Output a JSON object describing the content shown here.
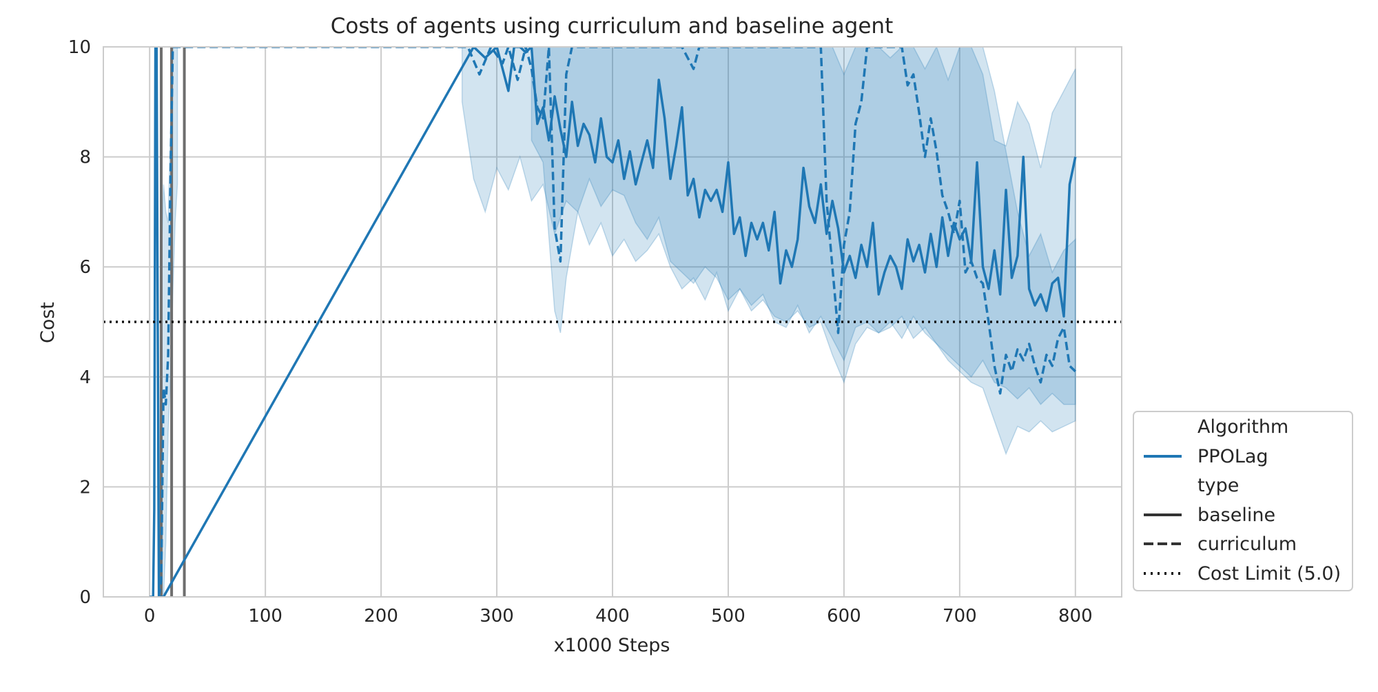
{
  "chart_data": {
    "type": "line",
    "title": "Costs of agents using curriculum and baseline agent",
    "xlabel": "x1000 Steps",
    "ylabel": "Cost",
    "xlim": [
      -40,
      840
    ],
    "ylim": [
      0,
      10
    ],
    "xticks": [
      0,
      100,
      200,
      300,
      400,
      500,
      600,
      700,
      800
    ],
    "yticks": [
      0,
      2,
      4,
      6,
      8,
      10
    ],
    "grid": true,
    "legend_placement": "lower-right-outside",
    "colors": {
      "series": "#1f77b4",
      "band": "#1f77b4",
      "grid": "#cccccc",
      "axes": "#cccccc",
      "limit": "#111111",
      "legend_style_line": "#333333",
      "vertical_markers": "#6e6e6e"
    },
    "legend": {
      "hue_title": "Algorithm",
      "hue_entries": [
        "PPOLag"
      ],
      "style_title": "type",
      "style_entries": [
        "baseline",
        "curriculum"
      ],
      "limit_entry": "Cost Limit (5.0)"
    },
    "cost_limit": 5.0,
    "vertical_markers": [
      10,
      19,
      30
    ],
    "series": [
      {
        "name": "PPOLag",
        "type": "baseline",
        "dash": "solid",
        "x": [
          0,
          3,
          4,
          5,
          6,
          8,
          12,
          280,
          290,
          300,
          310,
          315,
          320,
          325,
          330,
          335,
          340,
          345,
          350,
          355,
          360,
          365,
          370,
          375,
          380,
          385,
          390,
          395,
          400,
          405,
          410,
          415,
          420,
          425,
          430,
          435,
          440,
          445,
          450,
          455,
          460,
          465,
          470,
          475,
          480,
          485,
          490,
          495,
          500,
          505,
          510,
          515,
          520,
          525,
          530,
          535,
          540,
          545,
          550,
          555,
          560,
          565,
          570,
          575,
          580,
          585,
          590,
          595,
          600,
          605,
          610,
          615,
          620,
          625,
          630,
          635,
          640,
          645,
          650,
          655,
          660,
          665,
          670,
          675,
          680,
          685,
          690,
          695,
          700,
          705,
          710,
          715,
          720,
          725,
          730,
          735,
          740,
          745,
          750,
          755,
          760,
          765,
          770,
          775,
          780,
          785,
          790,
          795,
          800
        ],
        "y": [
          0,
          0,
          1.6,
          10,
          10,
          0,
          0,
          10,
          9.8,
          10,
          9.2,
          10,
          10,
          9.9,
          10,
          8.6,
          8.9,
          8.3,
          9.1,
          8.5,
          8.0,
          9.0,
          8.2,
          8.6,
          8.4,
          7.9,
          8.7,
          8.0,
          7.9,
          8.3,
          7.6,
          8.1,
          7.5,
          7.9,
          8.3,
          7.8,
          9.4,
          8.7,
          7.6,
          8.2,
          8.9,
          7.3,
          7.6,
          6.9,
          7.4,
          7.2,
          7.4,
          7.0,
          7.9,
          6.6,
          6.9,
          6.2,
          6.8,
          6.5,
          6.8,
          6.3,
          7.0,
          5.7,
          6.3,
          6.0,
          6.5,
          7.8,
          7.1,
          6.8,
          7.5,
          6.6,
          7.2,
          6.7,
          5.9,
          6.2,
          5.8,
          6.4,
          6.0,
          6.8,
          5.5,
          5.9,
          6.2,
          6.0,
          5.6,
          6.5,
          6.1,
          6.4,
          5.9,
          6.6,
          6.0,
          6.9,
          6.2,
          6.8,
          6.5,
          6.7,
          6.1,
          7.9,
          6.0,
          5.6,
          6.3,
          5.5,
          7.4,
          5.8,
          6.2,
          8.0,
          5.6,
          5.3,
          5.5,
          5.2,
          5.7,
          5.8,
          5.1,
          7.5,
          8.0
        ]
      },
      {
        "name": "PPOLag",
        "type": "curriculum",
        "dash": "dashed",
        "x": [
          8,
          10,
          12,
          14,
          16,
          18,
          20,
          22,
          275,
          285,
          295,
          305,
          310,
          318,
          325,
          330,
          335,
          340,
          345,
          350,
          355,
          360,
          365,
          370,
          380,
          390,
          400,
          420,
          440,
          460,
          470,
          475,
          580,
          585,
          590,
          595,
          600,
          605,
          610,
          615,
          620,
          630,
          640,
          645,
          650,
          655,
          660,
          665,
          670,
          675,
          680,
          685,
          690,
          695,
          700,
          705,
          710,
          715,
          720,
          725,
          730,
          735,
          740,
          745,
          750,
          755,
          760,
          765,
          770,
          775,
          780,
          785,
          790,
          795,
          800
        ],
        "y": [
          0,
          0.3,
          3.8,
          3.5,
          4.4,
          7.6,
          10,
          10,
          10,
          9.5,
          10,
          9.7,
          10,
          9.4,
          10,
          9.6,
          8.9,
          8.7,
          10,
          6.7,
          6.1,
          9.5,
          10,
          10,
          10,
          10,
          10,
          10,
          10,
          10,
          9.6,
          10,
          10,
          7.2,
          6.0,
          4.8,
          6.4,
          7.0,
          8.6,
          9.0,
          10,
          10,
          10,
          10,
          10,
          9.3,
          9.5,
          8.8,
          8.0,
          8.7,
          8.1,
          7.3,
          7.0,
          6.6,
          7.2,
          5.9,
          6.1,
          5.8,
          5.7,
          5.0,
          4.2,
          3.7,
          4.4,
          4.1,
          4.5,
          4.3,
          4.6,
          4.2,
          3.9,
          4.4,
          4.2,
          4.7,
          4.9,
          4.2,
          4.1
        ]
      }
    ],
    "bands": [
      {
        "series": "baseline",
        "x": [
          270,
          280,
          290,
          300,
          310,
          320,
          330,
          340,
          350,
          360,
          370,
          380,
          390,
          400,
          410,
          420,
          430,
          440,
          450,
          460,
          470,
          480,
          490,
          500,
          510,
          520,
          530,
          540,
          550,
          560,
          570,
          580,
          590,
          600,
          610,
          620,
          630,
          640,
          650,
          660,
          670,
          680,
          690,
          700,
          710,
          720,
          730,
          740,
          750,
          760,
          770,
          780,
          790,
          800
        ],
        "lower": [
          9.0,
          7.6,
          7.0,
          7.8,
          7.4,
          8.0,
          7.2,
          7.5,
          6.6,
          7.2,
          7.0,
          6.4,
          6.8,
          6.2,
          6.5,
          6.1,
          6.3,
          6.6,
          6.0,
          5.6,
          5.8,
          5.4,
          5.9,
          5.2,
          5.6,
          5.3,
          5.5,
          5.0,
          4.9,
          5.3,
          4.8,
          5.1,
          4.7,
          4.3,
          4.9,
          5.0,
          4.8,
          4.9,
          5.1,
          4.7,
          4.9,
          4.6,
          4.4,
          4.2,
          4.0,
          4.3,
          3.9,
          3.8,
          3.6,
          3.8,
          3.5,
          3.7,
          3.5,
          3.5
        ],
        "upper": [
          10,
          10,
          10,
          10,
          10,
          10,
          10,
          10,
          10,
          10,
          10,
          10,
          10,
          10,
          10,
          10,
          10,
          10,
          10,
          10,
          10,
          10,
          10,
          10,
          10,
          10,
          10,
          10,
          10,
          10,
          10,
          10,
          10,
          9.5,
          10,
          10,
          10,
          9.8,
          10,
          10,
          9.6,
          10,
          9.4,
          10,
          10,
          9.5,
          8.3,
          8.2,
          9.0,
          8.6,
          7.8,
          8.8,
          9.2,
          9.6
        ]
      },
      {
        "series": "curriculum",
        "x": [
          330,
          340,
          350,
          355,
          360,
          370,
          380,
          390,
          400,
          410,
          420,
          430,
          440,
          450,
          460,
          470,
          480,
          490,
          500,
          510,
          520,
          530,
          540,
          550,
          560,
          570,
          580,
          590,
          600,
          610,
          620,
          630,
          640,
          650,
          660,
          670,
          680,
          690,
          700,
          710,
          720,
          730,
          740,
          750,
          760,
          770,
          780,
          790,
          800
        ],
        "lower": [
          8.3,
          7.9,
          5.2,
          4.8,
          5.8,
          7.0,
          7.6,
          7.1,
          7.4,
          7.3,
          6.8,
          6.5,
          6.9,
          6.1,
          5.9,
          5.7,
          6.0,
          5.8,
          5.4,
          5.6,
          5.2,
          5.4,
          5.1,
          5.0,
          5.2,
          4.9,
          5.0,
          4.4,
          3.9,
          4.6,
          4.9,
          4.8,
          5.0,
          4.7,
          5.1,
          4.8,
          4.6,
          4.3,
          4.1,
          3.9,
          3.8,
          3.2,
          2.6,
          3.1,
          3.0,
          3.2,
          3.0,
          3.1,
          3.2
        ],
        "upper": [
          10,
          10,
          10,
          10,
          10,
          10,
          10,
          10,
          10,
          10,
          10,
          10,
          10,
          10,
          10,
          10,
          10,
          10,
          10,
          10,
          10,
          10,
          10,
          10,
          10,
          10,
          10,
          10,
          10,
          10,
          10,
          10,
          10,
          10,
          10,
          10,
          10,
          10,
          10,
          10,
          10,
          9.2,
          8.1,
          7.0,
          6.2,
          6.6,
          5.9,
          6.3,
          6.5
        ]
      },
      {
        "series": "early",
        "x": [
          8,
          10,
          12,
          14,
          16,
          18,
          20,
          22,
          24
        ],
        "lower": [
          0,
          0,
          0,
          1.0,
          3.0,
          4.0,
          5.5,
          6.8,
          7.5
        ],
        "upper": [
          0.5,
          6.0,
          7.5,
          7.0,
          6.8,
          8.5,
          10,
          10,
          10
        ]
      }
    ]
  }
}
